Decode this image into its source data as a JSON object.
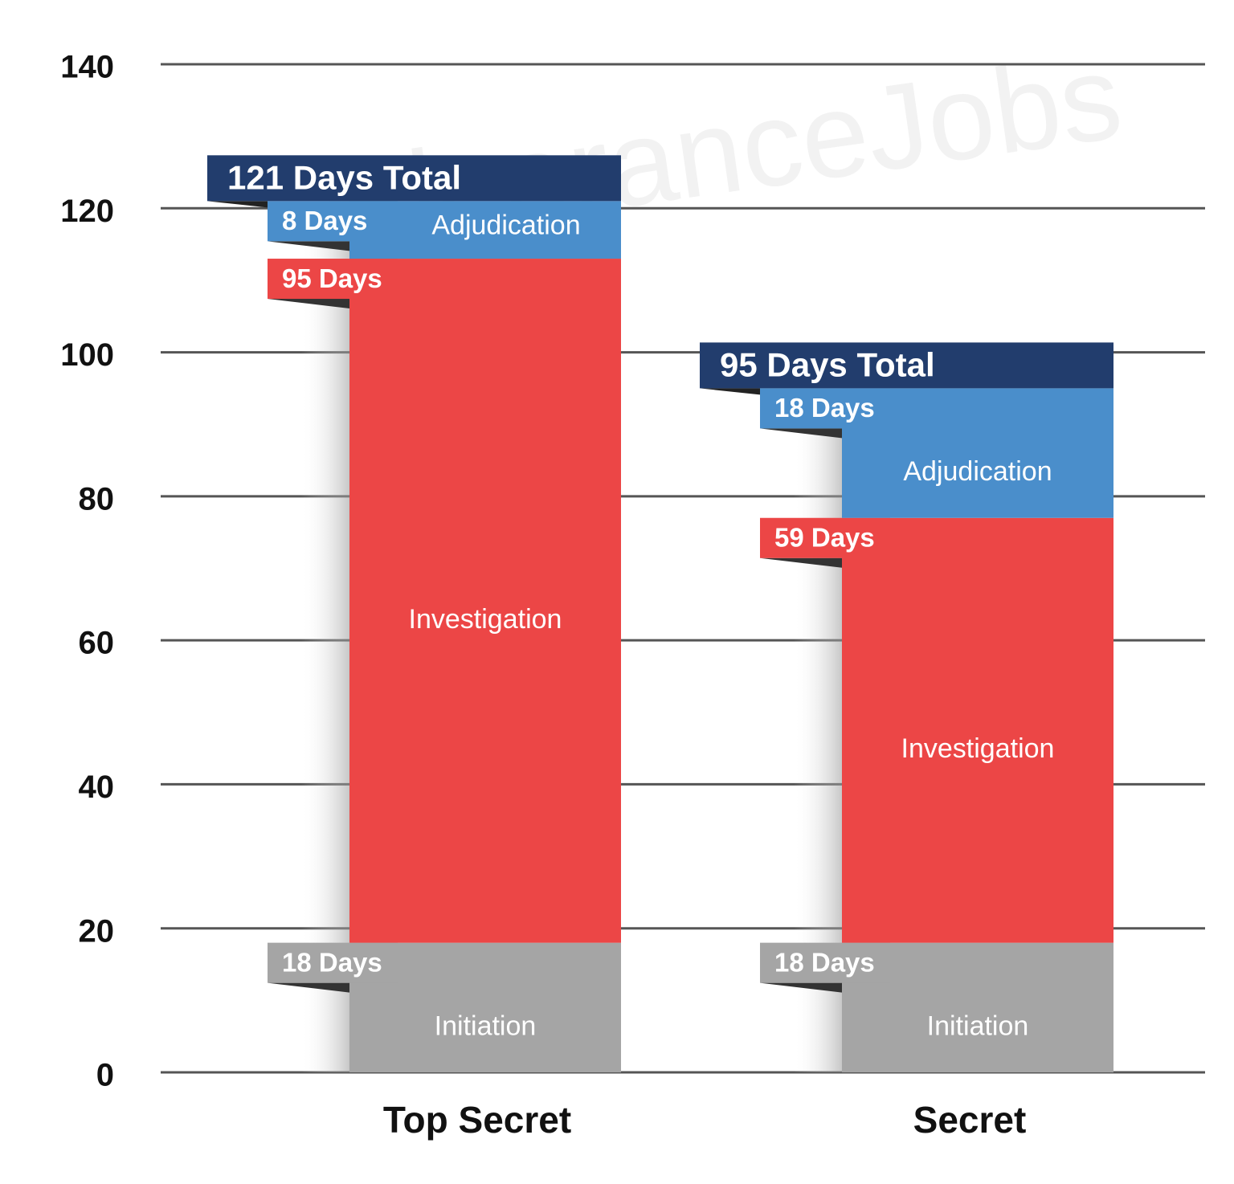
{
  "chart_data": {
    "type": "stacked-bar",
    "watermark": "ClearanceJobs",
    "categories": [
      "Top Secret",
      "Secret"
    ],
    "series": [
      {
        "name": "Initiation",
        "color": "#a5a5a5",
        "values": [
          18,
          18
        ],
        "value_labels": [
          "18 Days",
          "18 Days"
        ]
      },
      {
        "name": "Investigation",
        "color": "#ec4646",
        "values": [
          95,
          59
        ],
        "value_labels": [
          "95 Days",
          "59 Days"
        ]
      },
      {
        "name": "Adjudication",
        "color": "#4a8ecb",
        "values": [
          8,
          18
        ],
        "value_labels": [
          "8 Days",
          "18 Days"
        ]
      }
    ],
    "totals": {
      "color": "#223d6d",
      "values": [
        121,
        95
      ],
      "value_labels": [
        "121 Days Total",
        "95 Days Total"
      ]
    },
    "ylim": [
      0,
      140
    ],
    "yticks": [
      0,
      20,
      40,
      60,
      80,
      100,
      120,
      140
    ],
    "grid": true
  }
}
